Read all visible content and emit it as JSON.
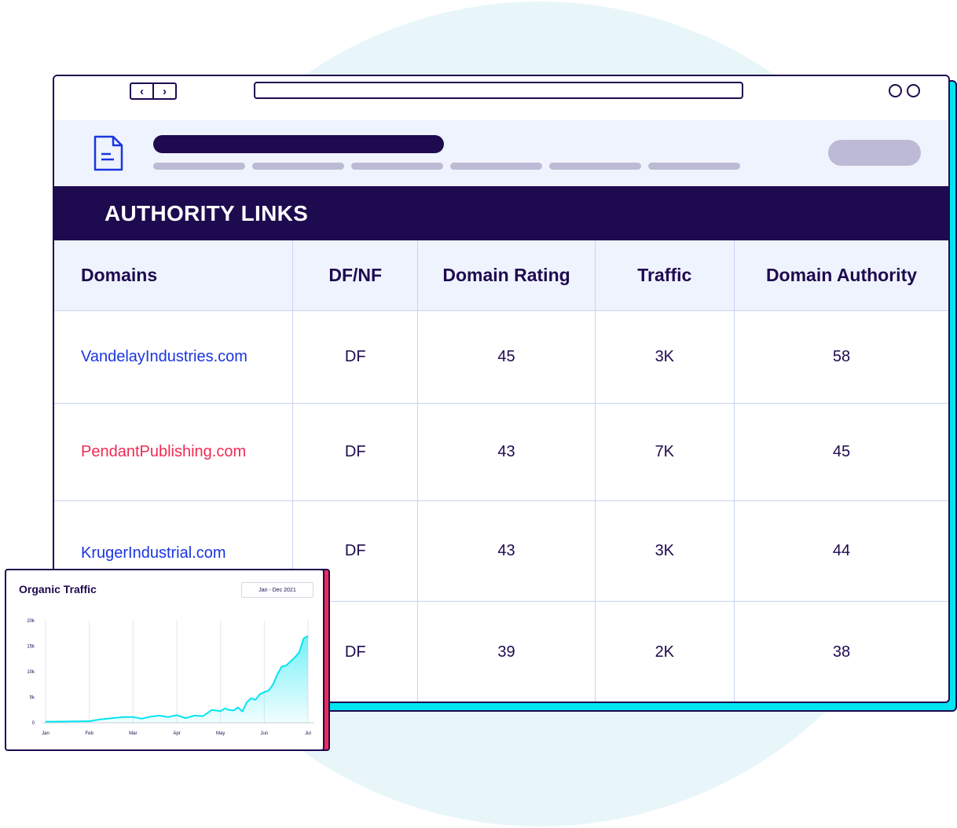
{
  "page": {
    "banner_title": "AUTHORITY LINKS"
  },
  "table": {
    "headers": [
      "Domains",
      "DF/NF",
      "Domain Rating",
      "Traffic",
      "Domain Authority"
    ],
    "rows": [
      {
        "domain": "VandelayIndustries.com",
        "link_color": "blue",
        "dfnf": "DF",
        "rating": "45",
        "traffic": "3K",
        "authority": "58"
      },
      {
        "domain": "PendantPublishing.com",
        "link_color": "pink",
        "dfnf": "DF",
        "rating": "43",
        "traffic": "7K",
        "authority": "45"
      },
      {
        "domain": "KrugerIndustrial.com",
        "link_color": "blue",
        "dfnf": "DF",
        "rating": "43",
        "traffic": "3K",
        "authority": "44"
      },
      {
        "domain": "",
        "link_color": "blue",
        "dfnf": "DF",
        "rating": "39",
        "traffic": "2K",
        "authority": "38"
      }
    ]
  },
  "colors": {
    "navy": "#1e0a4f",
    "cyan": "#00e5f2",
    "pink": "#ef2b53",
    "link_blue": "#1a35e0",
    "grid": "#c7d3f3"
  },
  "icons": [
    "chevron-left-icon",
    "chevron-right-icon",
    "document-icon"
  ],
  "card": {
    "title": "Organic Traffic",
    "range_label": "Jan - Dec 2021"
  },
  "chart_data": {
    "type": "area",
    "title": "Organic Traffic",
    "xlabel": "",
    "ylabel": "",
    "x_ticks": [
      "Jan",
      "Feb",
      "Mar",
      "Apr",
      "May",
      "Jun",
      "Jul"
    ],
    "y_ticks": [
      "0",
      "5k",
      "10k",
      "15k",
      "20k"
    ],
    "ylim": [
      0,
      20000
    ],
    "grid": "vertical",
    "series": [
      {
        "x": [
          0,
          0.5,
          0.9,
          1.0,
          1.2,
          1.5,
          1.8,
          2.0,
          2.2,
          2.4,
          2.6,
          2.8,
          3.0,
          3.2,
          3.4,
          3.6,
          3.8,
          4.0,
          4.1,
          4.2,
          4.3,
          4.4,
          4.5,
          4.6,
          4.7,
          4.8,
          4.9,
          5.0,
          5.1,
          5.2,
          5.3,
          5.4,
          5.5,
          5.6,
          5.7,
          5.8,
          5.9,
          6.0
        ],
        "values": [
          200,
          250,
          300,
          300,
          600,
          900,
          1100,
          1100,
          800,
          1200,
          1400,
          1100,
          1500,
          900,
          1400,
          1300,
          2500,
          2300,
          2800,
          2500,
          2400,
          3000,
          2200,
          4000,
          4800,
          4500,
          5600,
          6000,
          6300,
          7500,
          9500,
          11000,
          11200,
          12000,
          12800,
          13800,
          16500,
          17000
        ]
      }
    ]
  }
}
